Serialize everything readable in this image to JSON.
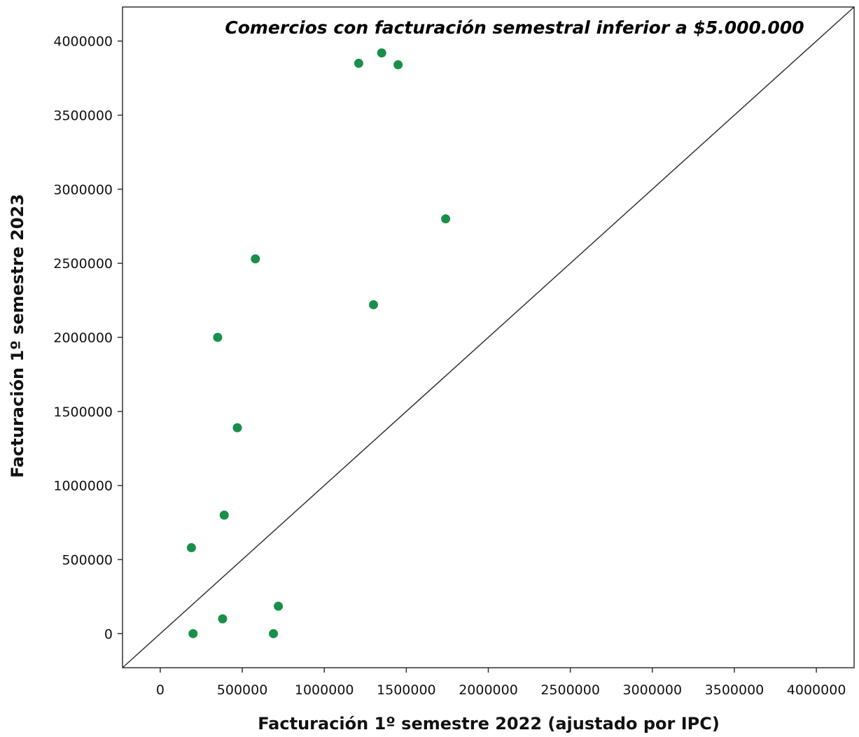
{
  "chart_data": {
    "type": "scatter",
    "title": "Comercios con facturación semestral inferior a $5.000.000",
    "xlabel": "Facturación 1º semestre 2022 (ajustado por IPC)",
    "ylabel": "Facturación 1º semestre 2023",
    "xlim": [
      -230000,
      4230000
    ],
    "ylim": [
      -230000,
      4230000
    ],
    "xticks": [
      0,
      500000,
      1000000,
      1500000,
      2000000,
      2500000,
      3000000,
      3500000,
      4000000
    ],
    "yticks": [
      0,
      500000,
      1000000,
      1500000,
      2000000,
      2500000,
      3000000,
      3500000,
      4000000
    ],
    "xtick_labels": [
      "0",
      "500000",
      "1000000",
      "1500000",
      "2000000",
      "2500000",
      "3000000",
      "3500000",
      "4000000"
    ],
    "ytick_labels": [
      "0",
      "500000",
      "1000000",
      "1500000",
      "2000000",
      "2500000",
      "3000000",
      "3500000",
      "4000000"
    ],
    "reference_line": "y = x",
    "grid": false,
    "marker_color": "#1a8f4a",
    "line_color": "#333333",
    "points": [
      {
        "x": 1210000,
        "y": 3850000
      },
      {
        "x": 1350000,
        "y": 3920000
      },
      {
        "x": 1450000,
        "y": 3840000
      },
      {
        "x": 1740000,
        "y": 2800000
      },
      {
        "x": 580000,
        "y": 2530000
      },
      {
        "x": 1300000,
        "y": 2220000
      },
      {
        "x": 350000,
        "y": 2000000
      },
      {
        "x": 470000,
        "y": 1390000
      },
      {
        "x": 390000,
        "y": 800000
      },
      {
        "x": 190000,
        "y": 580000
      },
      {
        "x": 720000,
        "y": 185000
      },
      {
        "x": 380000,
        "y": 100000
      },
      {
        "x": 200000,
        "y": 0
      },
      {
        "x": 690000,
        "y": 0
      }
    ]
  }
}
